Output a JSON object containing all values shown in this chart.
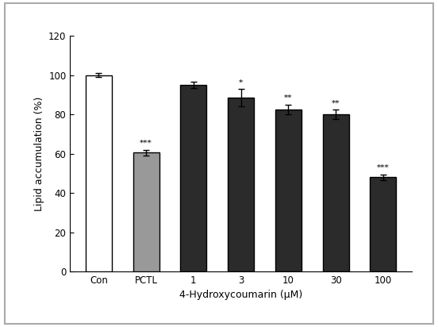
{
  "categories": [
    "Con",
    "PCTL",
    "1",
    "3",
    "10",
    "30",
    "100"
  ],
  "values": [
    100,
    60.5,
    95.0,
    88.5,
    82.5,
    80.0,
    48.0
  ],
  "errors": [
    1.0,
    1.5,
    1.5,
    4.5,
    2.5,
    2.5,
    1.5
  ],
  "bar_colors": [
    "#ffffff",
    "#999999",
    "#2b2b2b",
    "#2b2b2b",
    "#2b2b2b",
    "#2b2b2b",
    "#2b2b2b"
  ],
  "edge_colors": [
    "#000000",
    "#000000",
    "#000000",
    "#000000",
    "#000000",
    "#000000",
    "#000000"
  ],
  "significance": [
    "",
    "***",
    "",
    "*",
    "**",
    "**",
    "***"
  ],
  "xlabel": "4-Hydroxycoumarin (μM)",
  "ylabel": "Lipid accumulation (%)",
  "ylim": [
    0,
    120
  ],
  "yticks": [
    0,
    20,
    40,
    60,
    80,
    100,
    120
  ],
  "bar_width": 0.55,
  "figsize": [
    5.52,
    4.12
  ],
  "dpi": 100,
  "background_color": "#ffffff",
  "outer_border_color": "#aaaaaa",
  "label_fontsize": 9,
  "tick_fontsize": 8.5,
  "sig_fontsize": 7.5
}
